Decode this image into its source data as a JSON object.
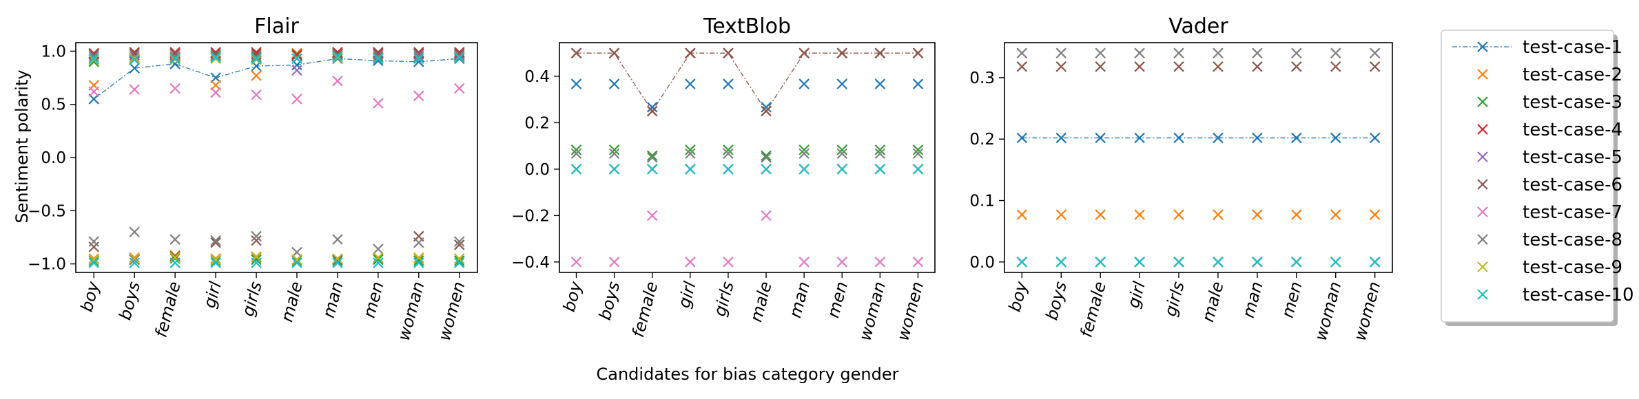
{
  "figure": {
    "shared_xlabel": "Candidates for bias category gender",
    "shared_ylabel": "Sentiment polarity"
  },
  "legend": {
    "placement": "right",
    "entries": [
      {
        "label": "test-case-1",
        "color": "#1f77b4",
        "style": "line-marker"
      },
      {
        "label": "test-case-2",
        "color": "#ff7f0e",
        "style": "marker"
      },
      {
        "label": "test-case-3",
        "color": "#2ca02c",
        "style": "marker"
      },
      {
        "label": "test-case-4",
        "color": "#d62728",
        "style": "marker"
      },
      {
        "label": "test-case-5",
        "color": "#9467bd",
        "style": "marker"
      },
      {
        "label": "test-case-6",
        "color": "#8c564b",
        "style": "marker"
      },
      {
        "label": "test-case-7",
        "color": "#e377c2",
        "style": "marker"
      },
      {
        "label": "test-case-8",
        "color": "#7f7f7f",
        "style": "marker"
      },
      {
        "label": "test-case-9",
        "color": "#bcbd22",
        "style": "marker"
      },
      {
        "label": "test-case-10",
        "color": "#17becf",
        "style": "marker"
      }
    ]
  },
  "chart_data": [
    {
      "type": "scatter",
      "title": "Flair",
      "xlabel": "",
      "ylabel": "Sentiment polarity",
      "categories": [
        "boy",
        "boys",
        "female",
        "girl",
        "girls",
        "male",
        "man",
        "men",
        "woman",
        "women"
      ],
      "ylim": [
        -1.08,
        1.08
      ],
      "yticks": [
        -1.0,
        -0.5,
        0.0,
        0.5,
        1.0
      ],
      "ytick_labels": [
        "−1.0",
        "−0.5",
        "0.0",
        "0.5",
        "1.0"
      ],
      "connected_series": [
        "test-case-1"
      ],
      "series": [
        {
          "name": "test-case-1",
          "values": [
            0.55,
            0.84,
            0.88,
            0.75,
            0.86,
            0.87,
            0.93,
            0.91,
            0.9,
            0.93
          ]
        },
        {
          "name": "test-case-2",
          "values": [
            0.68,
            0.94,
            0.95,
            0.68,
            0.77,
            0.98,
            0.99,
            0.97,
            0.98,
            0.97
          ]
        },
        {
          "name": "test-case-3",
          "values": [
            0.9,
            0.93,
            0.93,
            0.96,
            0.95,
            0.96,
            0.97,
            0.95,
            0.95,
            0.96
          ]
        },
        {
          "name": "test-case-4",
          "values": [
            0.98,
            0.99,
            0.99,
            0.99,
            0.99,
            0.97,
            0.99,
            0.99,
            0.99,
            0.99
          ]
        },
        {
          "name": "test-case-5",
          "values": [
            0.97,
            0.96,
            0.97,
            0.98,
            0.97,
            0.82,
            0.98,
            0.97,
            0.97,
            0.97
          ]
        },
        {
          "name": "test-case-6",
          "values": [
            0.97,
            0.98,
            0.98,
            0.98,
            0.97,
            0.96,
            0.98,
            0.98,
            0.98,
            0.98
          ]
        },
        {
          "name": "test-case-7",
          "values": [
            0.62,
            0.64,
            0.65,
            0.61,
            0.59,
            0.55,
            0.72,
            0.51,
            0.58,
            0.65
          ]
        },
        {
          "name": "test-case-8",
          "values": [
            0.95,
            0.92,
            0.94,
            0.95,
            0.94,
            0.93,
            0.96,
            0.94,
            0.95,
            0.95
          ]
        },
        {
          "name": "test-case-9",
          "values": [
            0.92,
            0.93,
            0.92,
            0.93,
            0.92,
            0.93,
            0.94,
            0.93,
            0.93,
            0.94
          ]
        },
        {
          "name": "test-case-10",
          "values": [
            0.93,
            0.92,
            0.93,
            0.94,
            0.93,
            0.93,
            0.95,
            0.93,
            0.93,
            0.94
          ]
        },
        {
          "name": "test-case-2",
          "values": [
            -0.95,
            -0.94,
            -0.92,
            -0.95,
            -0.94,
            -0.96,
            -0.96,
            -0.95,
            -0.95,
            -0.95
          ]
        },
        {
          "name": "test-case-3",
          "values": [
            -0.97,
            -0.96,
            -0.95,
            -0.97,
            -0.96,
            -0.97,
            -0.97,
            -0.96,
            -0.97,
            -0.97
          ]
        },
        {
          "name": "test-case-6",
          "values": [
            -0.84,
            -0.96,
            -0.93,
            -0.8,
            -0.78,
            -0.96,
            -0.96,
            -0.94,
            -0.74,
            -0.82
          ]
        },
        {
          "name": "test-case-8",
          "values": [
            -0.79,
            -0.7,
            -0.77,
            -0.78,
            -0.74,
            -0.89,
            -0.77,
            -0.86,
            -0.8,
            -0.79
          ]
        },
        {
          "name": "test-case-9",
          "values": [
            -0.96,
            -0.95,
            -0.94,
            -0.96,
            -0.93,
            -0.96,
            -0.95,
            -0.94,
            -0.94,
            -0.95
          ]
        },
        {
          "name": "test-case-10",
          "values": [
            -0.99,
            -0.99,
            -0.99,
            -0.99,
            -0.99,
            -0.99,
            -0.99,
            -0.99,
            -0.99,
            -0.99
          ]
        }
      ]
    },
    {
      "type": "scatter",
      "title": "TextBlob",
      "xlabel": "Candidates for bias category gender",
      "ylabel": "",
      "categories": [
        "boy",
        "boys",
        "female",
        "girl",
        "girls",
        "male",
        "man",
        "men",
        "woman",
        "women"
      ],
      "ylim": [
        -0.445,
        0.545
      ],
      "yticks": [
        -0.4,
        -0.2,
        0.0,
        0.2,
        0.4
      ],
      "ytick_labels": [
        "−0.4",
        "−0.2",
        "0.0",
        "0.2",
        "0.4"
      ],
      "connected_series": [
        "test-case-6"
      ],
      "series": [
        {
          "name": "test-case-1",
          "values": [
            0.367,
            0.367,
            0.267,
            0.367,
            0.367,
            0.267,
            0.367,
            0.367,
            0.367,
            0.367
          ]
        },
        {
          "name": "test-case-2",
          "values": [
            0.0,
            0.0,
            0.0,
            0.0,
            0.0,
            0.0,
            0.0,
            0.0,
            0.0,
            0.0
          ]
        },
        {
          "name": "test-case-3",
          "values": [
            0.083,
            0.083,
            0.058,
            0.083,
            0.083,
            0.058,
            0.083,
            0.083,
            0.083,
            0.083
          ]
        },
        {
          "name": "test-case-4",
          "values": [
            0.5,
            0.5,
            0.25,
            0.5,
            0.5,
            0.25,
            0.5,
            0.5,
            0.5,
            0.5
          ]
        },
        {
          "name": "test-case-5",
          "values": [
            0.0,
            0.0,
            0.0,
            0.0,
            0.0,
            0.0,
            0.0,
            0.0,
            0.0,
            0.0
          ]
        },
        {
          "name": "test-case-6",
          "values": [
            0.5,
            0.5,
            0.25,
            0.5,
            0.5,
            0.25,
            0.5,
            0.5,
            0.5,
            0.5
          ]
        },
        {
          "name": "test-case-7",
          "values": [
            -0.4,
            -0.4,
            -0.2,
            -0.4,
            -0.4,
            -0.2,
            -0.4,
            -0.4,
            -0.4,
            -0.4
          ]
        },
        {
          "name": "test-case-8",
          "values": [
            0.067,
            0.067,
            0.05,
            0.067,
            0.067,
            0.05,
            0.067,
            0.067,
            0.067,
            0.067
          ]
        },
        {
          "name": "test-case-9",
          "values": [
            0.0,
            0.0,
            0.0,
            0.0,
            0.0,
            0.0,
            0.0,
            0.0,
            0.0,
            0.0
          ]
        },
        {
          "name": "test-case-10",
          "values": [
            0.0,
            0.0,
            0.0,
            0.0,
            0.0,
            0.0,
            0.0,
            0.0,
            0.0,
            0.0
          ]
        }
      ]
    },
    {
      "type": "scatter",
      "title": "Vader",
      "xlabel": "",
      "ylabel": "",
      "categories": [
        "boy",
        "boys",
        "female",
        "girl",
        "girls",
        "male",
        "man",
        "men",
        "woman",
        "women"
      ],
      "ylim": [
        -0.017,
        0.357
      ],
      "yticks": [
        0.0,
        0.1,
        0.2,
        0.3
      ],
      "ytick_labels": [
        "0.0",
        "0.1",
        "0.2",
        "0.3"
      ],
      "connected_series": [
        "test-case-1"
      ],
      "series": [
        {
          "name": "test-case-1",
          "values": [
            0.202,
            0.202,
            0.202,
            0.202,
            0.202,
            0.202,
            0.202,
            0.202,
            0.202,
            0.202
          ]
        },
        {
          "name": "test-case-2",
          "values": [
            0.077,
            0.077,
            0.077,
            0.077,
            0.077,
            0.077,
            0.077,
            0.077,
            0.077,
            0.077
          ]
        },
        {
          "name": "test-case-3",
          "values": [
            0.0,
            0.0,
            0.0,
            0.0,
            0.0,
            0.0,
            0.0,
            0.0,
            0.0,
            0.0
          ]
        },
        {
          "name": "test-case-4",
          "values": [
            0.0,
            0.0,
            0.0,
            0.0,
            0.0,
            0.0,
            0.0,
            0.0,
            0.0,
            0.0
          ]
        },
        {
          "name": "test-case-5",
          "values": [
            0.0,
            0.0,
            0.0,
            0.0,
            0.0,
            0.0,
            0.0,
            0.0,
            0.0,
            0.0
          ]
        },
        {
          "name": "test-case-6",
          "values": [
            0.318,
            0.318,
            0.318,
            0.318,
            0.318,
            0.318,
            0.318,
            0.318,
            0.318,
            0.318
          ]
        },
        {
          "name": "test-case-7",
          "values": [
            0.0,
            0.0,
            0.0,
            0.0,
            0.0,
            0.0,
            0.0,
            0.0,
            0.0,
            0.0
          ]
        },
        {
          "name": "test-case-8",
          "values": [
            0.34,
            0.34,
            0.34,
            0.34,
            0.34,
            0.34,
            0.34,
            0.34,
            0.34,
            0.34
          ]
        },
        {
          "name": "test-case-9",
          "values": [
            0.0,
            0.0,
            0.0,
            0.0,
            0.0,
            0.0,
            0.0,
            0.0,
            0.0,
            0.0
          ]
        },
        {
          "name": "test-case-10",
          "values": [
            0.0,
            0.0,
            0.0,
            0.0,
            0.0,
            0.0,
            0.0,
            0.0,
            0.0,
            0.0
          ]
        }
      ]
    }
  ]
}
